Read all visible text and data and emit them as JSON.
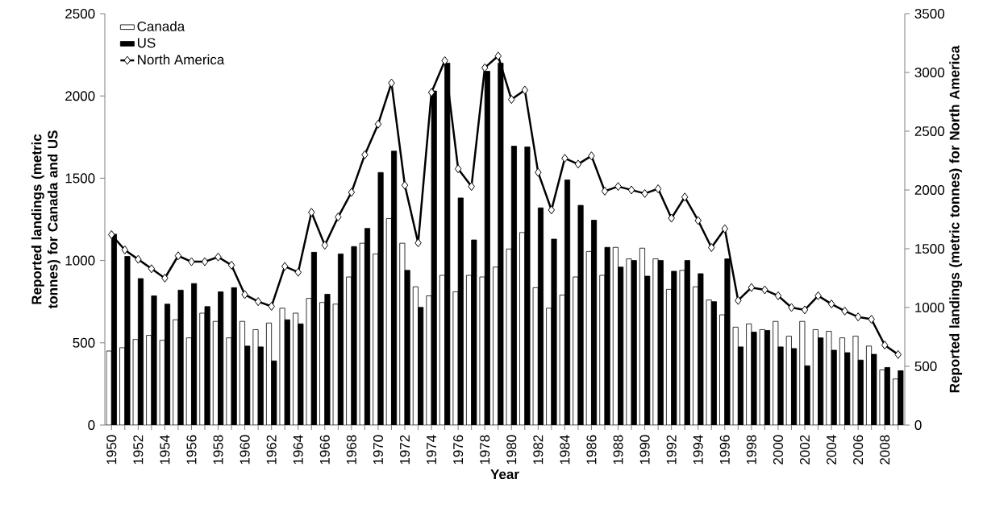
{
  "chart_data": {
    "type": "bar",
    "xlabel": "Year",
    "ylabel": "Reported landings (metric tonnes) for Canada and US",
    "y2label": "Reported landings (metric tonnes) for North America",
    "categories": [
      "1950",
      null,
      "1952",
      null,
      "1954",
      null,
      "1956",
      null,
      "1958",
      null,
      "1960",
      null,
      "1962",
      null,
      "1964",
      null,
      "1966",
      null,
      "1968",
      null,
      "1970",
      null,
      "1972",
      null,
      "1974",
      null,
      "1976",
      null,
      "1978",
      null,
      "1980",
      null,
      "1982",
      null,
      "1984",
      null,
      "1986",
      null,
      "1988",
      null,
      "1990",
      null,
      "1992",
      null,
      "1994",
      null,
      "1996",
      null,
      "1998",
      null,
      "2000",
      null,
      "2002",
      null,
      "2004",
      null,
      "2006",
      null,
      "2008",
      null
    ],
    "series": [
      {
        "name": "Canada",
        "color": "#ffffff",
        "values": [
          450,
          470,
          520,
          545,
          515,
          640,
          530,
          680,
          630,
          530,
          630,
          580,
          620,
          710,
          680,
          770,
          745,
          735,
          900,
          1105,
          1040,
          1255,
          1105,
          840,
          785,
          910,
          810,
          910,
          900,
          960,
          1070,
          1170,
          835,
          710,
          790,
          900,
          1055,
          910,
          1080,
          1010,
          1075,
          1010,
          825,
          940,
          840,
          760,
          670,
          595,
          615,
          580,
          630,
          540,
          630,
          580,
          570,
          530,
          540,
          480,
          335,
          280
        ]
      },
      {
        "name": "US",
        "color": "#000000",
        "values": [
          1160,
          1025,
          890,
          785,
          735,
          820,
          860,
          720,
          810,
          835,
          480,
          475,
          390,
          640,
          615,
          1050,
          795,
          1040,
          1085,
          1195,
          1535,
          1665,
          940,
          715,
          2030,
          2200,
          1380,
          1125,
          2150,
          2200,
          1695,
          1690,
          1320,
          1130,
          1490,
          1335,
          1245,
          1080,
          960,
          1000,
          905,
          1000,
          935,
          1000,
          920,
          750,
          1010,
          475,
          565,
          575,
          475,
          465,
          360,
          530,
          455,
          440,
          395,
          430,
          350,
          330
        ]
      },
      {
        "name": "North America",
        "type": "line",
        "axis": "y2",
        "color": "#000000",
        "marker": "diamond",
        "values": [
          1620,
          1490,
          1410,
          1330,
          1250,
          1440,
          1390,
          1390,
          1430,
          1360,
          1110,
          1050,
          1010,
          1350,
          1300,
          1810,
          1530,
          1770,
          1980,
          2300,
          2560,
          2910,
          2040,
          1550,
          2830,
          3100,
          2180,
          2030,
          3040,
          3140,
          2770,
          2850,
          2150,
          1830,
          2270,
          2220,
          2290,
          1990,
          2030,
          2000,
          1970,
          2010,
          1760,
          1940,
          1740,
          1510,
          1670,
          1060,
          1170,
          1150,
          1100,
          1000,
          980,
          1100,
          1030,
          970,
          920,
          900,
          680,
          600
        ]
      }
    ],
    "ylim": [
      0,
      2500
    ],
    "yticks": [
      0,
      500,
      1000,
      1500,
      2000,
      2500
    ],
    "y2lim": [
      0,
      3500
    ],
    "y2ticks": [
      0,
      500,
      1000,
      1500,
      2000,
      2500,
      3000,
      3500
    ],
    "legend": "top left"
  }
}
